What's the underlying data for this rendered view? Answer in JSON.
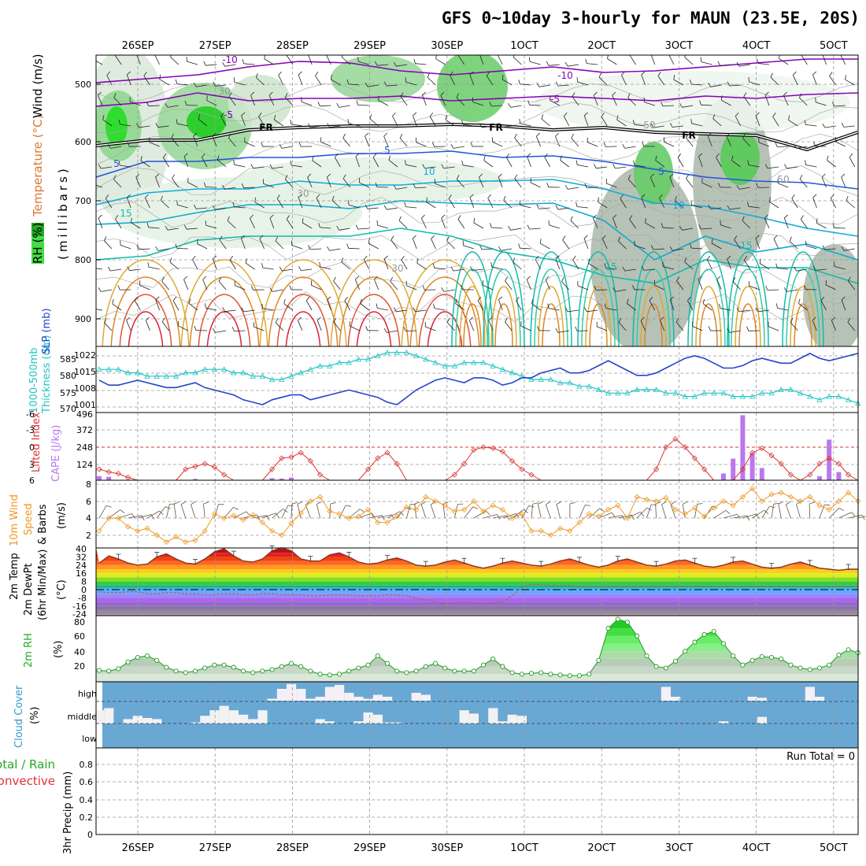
{
  "title": "GFS 0~10day 3-hourly for MAUN (23.5E, 20S)",
  "colors": {
    "rh_green": "#44dd44",
    "thick": "#22c4c4",
    "slp": "#2244cc",
    "lifted": "#dd3333",
    "cape": "#bb77ee",
    "wind10": "#ee9922",
    "temp_line": "#883322",
    "cloud_bg": "#6aa8d4",
    "cloud_fg": "#f2f2f2",
    "purple": "#8800bb",
    "blue": "#2255dd",
    "cyan": "#11aadd",
    "teal": "#11bbaa",
    "orange": "#dd9922",
    "red": "#dd2222"
  },
  "dates": [
    "26SEP",
    "27SEP",
    "28SEP",
    "29SEP",
    "30SEP",
    "1OCT",
    "2OCT",
    "3OCT",
    "4OCT",
    "5OCT"
  ],
  "date_labels_top": [
    "26SEP",
    "27SEP",
    "28SEP",
    "29SEP",
    "30SEP",
    "1OCT",
    "2OCT",
    "3OCT",
    "4OCT",
    "5OCT"
  ],
  "date_labels_bottom": [
    "26SEP",
    "27SEP",
    "28SEP",
    "29SEP",
    "30SEP",
    "1OCT",
    "2OCT",
    "3OCT",
    "4OCT",
    "5OCT"
  ],
  "panels": {
    "upper": {
      "ylabel_wind": "Wind (m/s)",
      "ylabel_temp": "Temperature (°C)",
      "ylabel_rh": "RH (%)",
      "ylabel_mb": "(millibars)",
      "ticks": [
        "500",
        "600",
        "700",
        "800",
        "900"
      ],
      "contour_labels": [
        "-10",
        "-10",
        "-5",
        "-5",
        "FR",
        "FR",
        "FR",
        "5",
        "5",
        "5",
        "10",
        "10",
        "15",
        "15",
        "15",
        "30",
        "30",
        "30",
        "50",
        "50"
      ]
    },
    "thick": {
      "ylabel1": "1000-500mb",
      "ylabel2": "Thickness (dm)",
      "ylabel3": "SLP (mb)",
      "ticks_left": [
        "585",
        "580",
        "575",
        "570"
      ],
      "ticks_right": [
        "1022",
        "1015",
        "1008",
        "1001"
      ]
    },
    "li": {
      "ylabel1": "Lifted Index",
      "ylabel2": "CAPE (J/kg)",
      "ticks_left": [
        "-6",
        "-3",
        "0",
        "3",
        "6"
      ],
      "ticks_right": [
        "496",
        "372",
        "248",
        "124",
        ""
      ]
    },
    "wind": {
      "ylabel1": "10m Wind",
      "ylabel2": "Speed",
      "ylabel3": "& Barbs",
      "ylabel4": "(m/s)",
      "ticks": [
        "8",
        "6",
        "4",
        "2"
      ]
    },
    "temp": {
      "ylabel1": "2m Temp",
      "ylabel2": "2m DewPt",
      "ylabel3": "(6hr Min/Max)",
      "ylabel4": "(°C)",
      "ticks": [
        "40",
        "32",
        "24",
        "16",
        "8",
        "0",
        "-8",
        "-16",
        "-24"
      ]
    },
    "rh": {
      "ylabel1": "2m RH",
      "ylabel2": "(%)",
      "ticks": [
        "80",
        "60",
        "40",
        "20"
      ]
    },
    "cloud": {
      "ylabel1": "Cloud Cover",
      "ylabel2": "(%)",
      "ticks": [
        "high",
        "middle",
        "low"
      ]
    },
    "precip": {
      "ylabel1": "Total / Rain",
      "ylabel2": "Convective",
      "ylabel3": "3hr Precip (mm)",
      "ticks": [
        "0.8",
        "0.6",
        "0.4",
        "0.2",
        "0"
      ],
      "run_total": "Run Total = 0"
    }
  },
  "chart_data": {
    "type": "line",
    "x": "3-hourly steps, 0 to 237 h from 25SEP 12Z to 5OCT 09Z (80 steps)",
    "thickness_dm": [
      581,
      581,
      581,
      580,
      580,
      579,
      579,
      579,
      579,
      580,
      580,
      581,
      581,
      581,
      580,
      580,
      579,
      579,
      578,
      578,
      579,
      580,
      581,
      582,
      582,
      583,
      583,
      584,
      584,
      585,
      586,
      586,
      586,
      585,
      584,
      583,
      582,
      582,
      583,
      583,
      583,
      582,
      581,
      580,
      579,
      578,
      578,
      578,
      577,
      577,
      576,
      576,
      575,
      574,
      574,
      574,
      575,
      575,
      575,
      574,
      574,
      573,
      573,
      574,
      574,
      574,
      573,
      573,
      573,
      574,
      574,
      575,
      575,
      574,
      573,
      572,
      573,
      573,
      572,
      571
    ],
    "slp_mb": [
      1012,
      1010,
      1010,
      1011,
      1012,
      1011,
      1010,
      1009,
      1009,
      1010,
      1011,
      1009,
      1008,
      1007,
      1006,
      1004,
      1003,
      1002,
      1004,
      1005,
      1006,
      1006,
      1004,
      1005,
      1006,
      1007,
      1008,
      1007,
      1006,
      1005,
      1003,
      1002,
      1005,
      1008,
      1010,
      1012,
      1013,
      1012,
      1011,
      1013,
      1013,
      1012,
      1010,
      1011,
      1013,
      1013,
      1015,
      1016,
      1017,
      1015,
      1015,
      1016,
      1018,
      1020,
      1018,
      1016,
      1014,
      1014,
      1015,
      1017,
      1019,
      1021,
      1022,
      1021,
      1019,
      1017,
      1017,
      1018,
      1020,
      1021,
      1020,
      1019,
      1019,
      1021,
      1023,
      1021,
      1020,
      1021,
      1022,
      1023
    ],
    "lifted_index": [
      4,
      4.5,
      4.8,
      5.5,
      6,
      6,
      6,
      6,
      6,
      4,
      3.5,
      3,
      3.6,
      5,
      6,
      6,
      6,
      6,
      4,
      2,
      1.8,
      1,
      2.5,
      5,
      6,
      6,
      6,
      6,
      4,
      2,
      1,
      3,
      6,
      6,
      6,
      6,
      6,
      5,
      3,
      0.5,
      0,
      0.2,
      0.8,
      2.5,
      4,
      5,
      6,
      6,
      6,
      6,
      6,
      6,
      6,
      6,
      6,
      6,
      6,
      6,
      4,
      0,
      -1.5,
      0,
      2,
      4,
      6,
      6,
      6,
      4,
      1,
      0.2,
      1.5,
      3,
      5,
      6,
      5,
      3,
      2,
      3,
      5,
      6
    ],
    "cape_jkg": [
      30,
      25,
      0,
      0,
      0,
      0,
      0,
      0,
      0,
      0,
      10,
      0,
      0,
      0,
      0,
      0,
      0,
      0,
      15,
      12,
      20,
      0,
      0,
      0,
      0,
      0,
      0,
      0,
      0,
      0,
      0,
      0,
      0,
      0,
      0,
      0,
      0,
      0,
      0,
      0,
      0,
      0,
      0,
      0,
      0,
      0,
      0,
      0,
      0,
      0,
      0,
      0,
      0,
      0,
      0,
      0,
      0,
      0,
      0,
      0,
      0,
      0,
      0,
      0,
      0,
      50,
      160,
      480,
      200,
      90,
      0,
      0,
      0,
      0,
      0,
      30,
      300,
      60,
      0,
      0
    ],
    "wind10_ms": [
      2.5,
      4,
      4,
      3,
      2.5,
      2.8,
      2,
      1.2,
      1.8,
      1.2,
      1.4,
      2.5,
      4.5,
      4,
      4.3,
      3.8,
      4.4,
      3.5,
      2.5,
      2,
      3.4,
      4.6,
      6,
      6.5,
      4.8,
      4.5,
      4,
      4.2,
      5,
      3.5,
      3.5,
      4.2,
      5.3,
      5,
      6.5,
      6,
      5.5,
      4.8,
      5,
      6,
      4.8,
      5.5,
      5,
      4,
      4.5,
      2.5,
      2.5,
      2,
      2.8,
      2.5,
      3.5,
      4.5,
      4.2,
      5,
      5.5,
      4,
      6.5,
      6.2,
      6,
      6.4,
      5,
      4.5,
      5.2,
      4.2,
      5.2,
      6,
      5.5,
      6.5,
      7.5,
      6,
      6.8,
      7,
      6.5,
      6,
      6.5,
      5.5,
      5,
      6,
      7,
      6
    ],
    "temp_max_c": [
      26,
      33,
      30,
      26,
      24,
      25,
      32,
      35,
      30,
      26,
      25,
      30,
      37,
      40,
      33,
      28,
      27,
      30,
      38,
      41,
      38,
      30,
      28,
      28,
      34,
      36,
      32,
      27,
      25,
      26,
      29,
      31,
      28,
      24,
      23,
      24,
      27,
      29,
      26,
      23,
      21,
      23,
      26,
      28,
      26,
      24,
      23,
      25,
      28,
      30,
      27,
      24,
      22,
      24,
      28,
      30,
      27,
      24,
      23,
      25,
      28,
      29,
      26,
      23,
      22,
      24,
      27,
      28,
      25,
      22,
      21,
      22,
      25,
      27,
      24,
      21,
      20,
      19,
      20,
      20
    ],
    "dewpt_c": [
      -2,
      -3,
      -3,
      -2,
      -2,
      -4,
      -4,
      -3,
      -3,
      -4,
      -4,
      -5,
      -5,
      -4,
      -4,
      -5,
      -5,
      -4,
      -4,
      -5,
      -5,
      -5,
      -6,
      -6,
      -5,
      -5,
      -5,
      -6,
      -6,
      -6,
      -5,
      -5,
      -6,
      -8,
      -10,
      -12,
      -14,
      -13,
      -12,
      -13,
      -14,
      -13,
      -12,
      -6,
      2,
      5,
      5,
      4,
      4,
      4,
      3,
      3,
      3,
      3,
      3,
      3,
      3,
      3,
      3,
      3,
      3,
      3,
      3,
      3,
      3,
      3,
      3,
      3,
      3,
      3,
      3,
      3,
      3,
      3,
      3,
      3,
      3,
      3,
      3,
      3
    ],
    "rh2m_pct": [
      15,
      14,
      17,
      26,
      32,
      34,
      28,
      19,
      14,
      12,
      14,
      18,
      22,
      22,
      19,
      14,
      12,
      14,
      16,
      20,
      24,
      20,
      14,
      10,
      9,
      10,
      14,
      18,
      22,
      34,
      24,
      14,
      12,
      14,
      20,
      24,
      18,
      14,
      14,
      14,
      22,
      30,
      20,
      12,
      10,
      11,
      12,
      10,
      9,
      8,
      8,
      10,
      28,
      70,
      82,
      78,
      60,
      34,
      20,
      18,
      27,
      40,
      52,
      62,
      66,
      50,
      34,
      22,
      28,
      33,
      32,
      30,
      22,
      18,
      16,
      18,
      22,
      35,
      42,
      38
    ],
    "cloud_high_pct": [
      0,
      0,
      0,
      0,
      0,
      0,
      0,
      0,
      0,
      0,
      0,
      0,
      0,
      0,
      0,
      0,
      0,
      0,
      10,
      60,
      85,
      60,
      10,
      20,
      70,
      80,
      40,
      20,
      10,
      30,
      20,
      0,
      0,
      40,
      30,
      0,
      0,
      0,
      0,
      0,
      0,
      0,
      0,
      0,
      0,
      0,
      0,
      0,
      0,
      0,
      0,
      0,
      0,
      0,
      0,
      0,
      0,
      0,
      0,
      70,
      20,
      0,
      0,
      0,
      0,
      0,
      0,
      0,
      20,
      15,
      0,
      0,
      0,
      0,
      70,
      20,
      0,
      0,
      0,
      0
    ],
    "cloud_mid_pct": [
      60,
      70,
      0,
      20,
      35,
      25,
      20,
      0,
      0,
      0,
      5,
      35,
      60,
      80,
      60,
      40,
      20,
      60,
      0,
      0,
      0,
      0,
      0,
      20,
      10,
      0,
      0,
      10,
      50,
      40,
      5,
      5,
      0,
      0,
      0,
      0,
      0,
      0,
      60,
      45,
      0,
      70,
      10,
      40,
      35,
      0,
      0,
      0,
      0,
      0,
      0,
      0,
      0,
      0,
      0,
      0,
      0,
      0,
      0,
      0,
      0,
      0,
      0,
      0,
      0,
      10,
      0,
      0,
      0,
      30,
      0,
      0,
      0,
      0,
      0,
      0,
      0,
      0,
      0,
      0
    ],
    "precip_mm": [
      0,
      0,
      0,
      0,
      0,
      0,
      0,
      0,
      0,
      0,
      0,
      0,
      0,
      0,
      0,
      0,
      0,
      0,
      0,
      0,
      0,
      0,
      0,
      0,
      0,
      0,
      0,
      0,
      0,
      0,
      0,
      0,
      0,
      0,
      0,
      0,
      0,
      0,
      0,
      0,
      0,
      0,
      0,
      0,
      0,
      0,
      0,
      0,
      0,
      0,
      0,
      0,
      0,
      0,
      0,
      0,
      0,
      0,
      0,
      0,
      0,
      0,
      0,
      0,
      0,
      0,
      0,
      0,
      0,
      0,
      0,
      0,
      0,
      0,
      0,
      0,
      0,
      0,
      0,
      0
    ],
    "precip_run_total_mm": 0
  }
}
